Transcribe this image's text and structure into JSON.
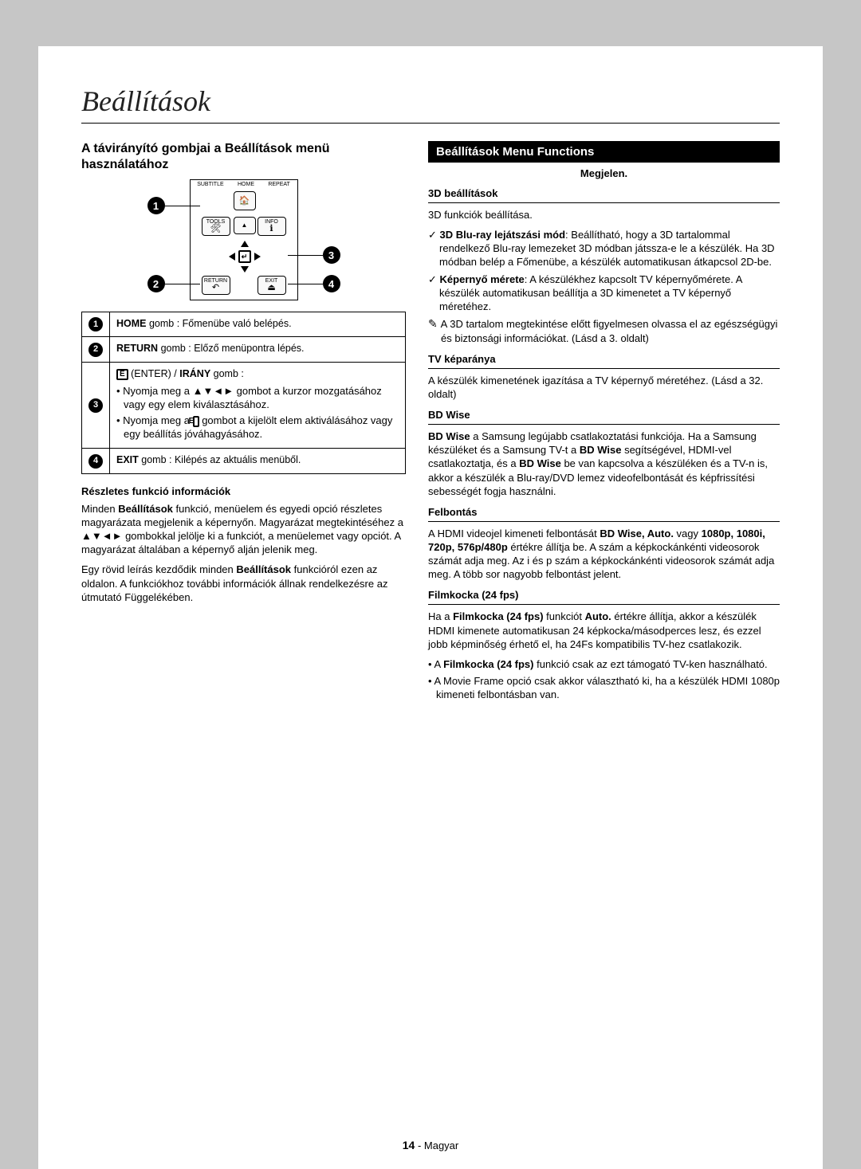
{
  "title": "Beállítások",
  "left": {
    "heading": "A távirányító gombjai a Beállítások menü használatához",
    "remote_labels": {
      "subtitle": "SUBTITLE",
      "home": "HOME",
      "repeat": "REPEAT",
      "tools": "TOOLS",
      "info": "INFO",
      "return": "RETURN",
      "exit": "EXIT"
    },
    "callouts": [
      "1",
      "2",
      "3",
      "4"
    ],
    "table": [
      {
        "n": "1",
        "html": "<span class='bold'>HOME</span> gomb : Főmenübe való belépés."
      },
      {
        "n": "2",
        "html": "<span class='bold'>RETURN</span> gomb : Előző menüpontra lépés."
      },
      {
        "n": "3",
        "html": "<span class='enter-icon'>E</span> (ENTER) / <span class='bold'>IRÁNY</span> gomb :",
        "bullets": [
          "Nyomja meg a <span class='arrows'>▲▼◄►</span> gombot a kurzor mozgatásához vagy egy elem kiválasztásához.",
          "Nyomja meg a <span class='enter-icon'>E</span> gombot a kijelölt elem aktiválásához vagy egy beállítás jóváhagyásához."
        ]
      },
      {
        "n": "4",
        "html": "<span class='bold'>EXIT</span> gomb : Kilépés az aktuális menüből."
      }
    ],
    "detail_heading": "Részletes funkció információk",
    "detail_p1": "Minden <span class='bold'>Beállítások</span> funkció, menüelem és egyedi opció részletes magyarázata megjelenik a képernyőn. Magyarázat megtekintéséhez a <span class='arrows'>▲▼◄►</span> gombokkal jelölje ki a funkciót, a menüelemet vagy opciót. A magyarázat általában a képernyő alján jelenik meg.",
    "detail_p2": "Egy rövid leírás kezdődik minden <span class='bold'>Beállítások</span> funkcióról ezen az oldalon. A funkciókhoz további információk állnak rendelkezésre az útmutató Függelékében."
  },
  "right": {
    "bar": "Beállítások Menu Functions",
    "megjelen": "Megjelen.",
    "settings": {
      "s3d_title": "3D beállítások",
      "s3d_intro": "3D funkciók beállítása.",
      "s3d_items": [
        "<span class='bold'>3D Blu-ray lejátszási mód</span>: Beállítható, hogy a 3D tartalommal rendelkező Blu-ray lemezeket 3D módban játssza-e le a készülék. Ha 3D módban belép a Főmenübe, a készülék automatikusan átkapcsol 2D-be.",
        "<span class='bold'>Képernyő mérete</span>: A készülékhez kapcsolt TV képernyőmérete. A készülék automatikusan beállítja a 3D kimenetet a TV képernyő méretéhez."
      ],
      "s3d_note": "A 3D tartalom megtekintése előtt figyelmesen olvassa el az egészségügyi és biztonsági információkat. (Lásd a 3. oldalt)",
      "tvarany_title": "TV képaránya",
      "tvarany_body": "A készülék kimenetének igazítása a TV képernyő méretéhez. (Lásd a 32. oldalt)",
      "bdwise_title": "BD Wise",
      "bdwise_body": "<span class='bold'>BD Wise</span> a Samsung legújabb csatlakoztatási funkciója. Ha a Samsung készüléket és a Samsung TV-t a <span class='bold'>BD Wise</span> segítségével, HDMI-vel csatlakoztatja, és a <span class='bold'>BD Wise</span> be van kapcsolva a készüléken és a TV-n is, akkor a készülék a Blu-ray/DVD lemez videofelbontását és képfrissítési sebességét fogja használni.",
      "felbontas_title": "Felbontás",
      "felbontas_body": "A HDMI videojel kimeneti felbontását <span class='bold'>BD Wise, Auto.</span> vagy <span class='bold'>1080p, 1080i, 720p, 576p/480p</span> értékre állítja be. A szám a képkockánkénti videosorok számát adja meg. Az i és p szám a képkockánkénti videosorok számát adja meg. A több sor nagyobb felbontást jelent.",
      "film_title": "Filmkocka (24 fps)",
      "film_body": "Ha a <span class='bold'>Filmkocka (24 fps)</span> funkciót <span class='bold'>Auto.</span> értékre állítja, akkor a készülék HDMI kimenete automatikusan 24 képkocka/másodperces lesz, és ezzel jobb képminőség érhető el, ha 24Fs kompatibilis TV-hez csatlakozik.",
      "film_bullets": [
        "A <span class='bold'>Filmkocka (24 fps)</span> funkció csak az ezt támogató TV-ken használható.",
        "A Movie Frame opció csak akkor választható ki, ha a készülék HDMI 1080p kimeneti felbontásban van."
      ]
    }
  },
  "footer": {
    "page": "14",
    "lang": "Magyar"
  }
}
